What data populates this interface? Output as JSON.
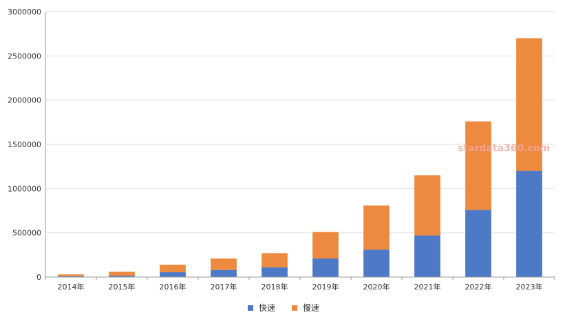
{
  "chart_data": {
    "type": "bar",
    "stacked": true,
    "categories": [
      "2014年",
      "2015年",
      "2016年",
      "2017年",
      "2018年",
      "2019年",
      "2020年",
      "2021年",
      "2022年",
      "2023年"
    ],
    "series": [
      {
        "name": "快速",
        "color": "#4e79c7",
        "values": [
          10000,
          15000,
          55000,
          80000,
          110000,
          210000,
          310000,
          470000,
          760000,
          1200000
        ]
      },
      {
        "name": "慢速",
        "color": "#ed8a3f",
        "values": [
          20000,
          45000,
          85000,
          130000,
          160000,
          300000,
          500000,
          680000,
          1000000,
          1500000
        ]
      }
    ],
    "ylim": [
      0,
      3000000
    ],
    "yticks": [
      "0",
      "500000",
      "1000000",
      "1500000",
      "2000000",
      "2500000",
      "3000000"
    ],
    "grid": true,
    "legend_position": "bottom-center"
  },
  "watermark": "stardata360.com"
}
